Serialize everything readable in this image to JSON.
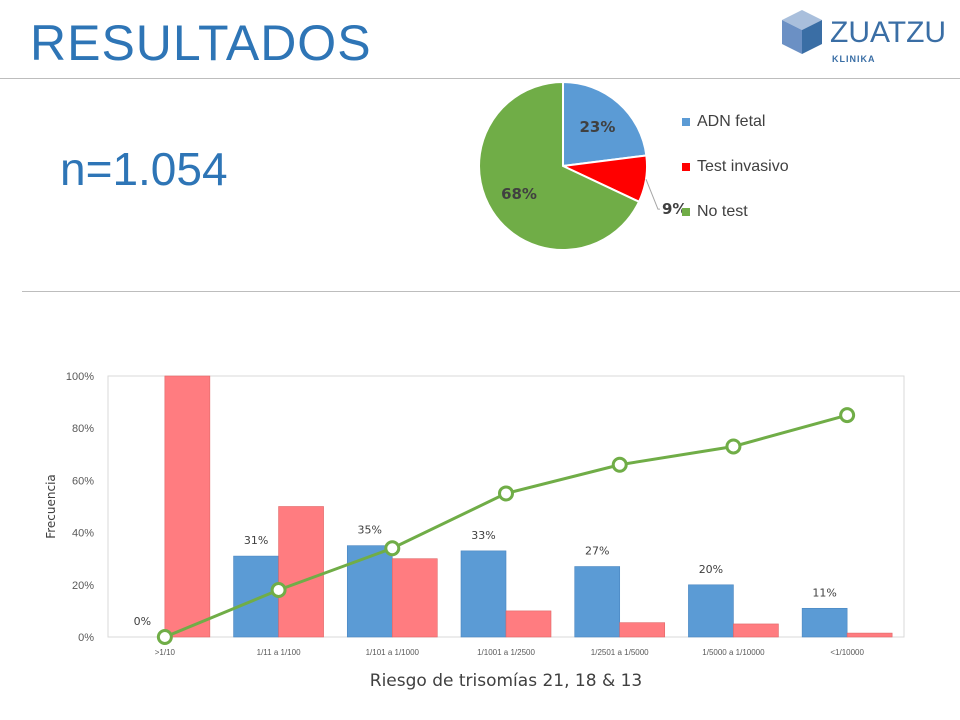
{
  "header": {
    "title": "RESULTADOS",
    "logo_name": "ZUATZU",
    "logo_sub": "KLINIKA"
  },
  "summary": {
    "n_label": "n=1.054"
  },
  "chart_data": [
    {
      "type": "pie",
      "labels": [
        "ADN fetal",
        "Test invasivo",
        "No test"
      ],
      "values": [
        23,
        9,
        68
      ],
      "value_labels": [
        "23%",
        "9%",
        "68%"
      ],
      "colors": [
        "#5b9bd5",
        "#ff0000",
        "#70ad47"
      ],
      "legend": "right",
      "title": ""
    },
    {
      "type": "bar",
      "categories": [
        ">1/10",
        "1/11 a 1/100",
        "1/101 a 1/1000",
        "1/1001 a 1/2500",
        "1/2501 a 1/5000",
        "1/5000 a 1/10000",
        "<1/10000"
      ],
      "series": [
        {
          "values": [
            0,
            31,
            35,
            33,
            27,
            20,
            11
          ],
          "value_labels": [
            "0%",
            "31%",
            "35%",
            "33%",
            "27%",
            "20%",
            "11%"
          ],
          "color": "#5b9bd5",
          "type": "bar"
        },
        {
          "values": [
            100,
            50,
            30,
            10,
            5.5,
            5,
            1.5
          ],
          "color": "#ff7c80",
          "type": "bar"
        },
        {
          "values": [
            0,
            18,
            34,
            55,
            66,
            73,
            85
          ],
          "color": "#70ad47",
          "type": "line",
          "markers": "circle"
        }
      ],
      "y_ticks": [
        "0%",
        "20%",
        "40%",
        "60%",
        "80%",
        "100%"
      ],
      "ylim": [
        0,
        100
      ],
      "ylabel": "Frecuencia",
      "xlabel": "Riesgo de trisomías 21, 18 & 13",
      "grid": false,
      "title": ""
    }
  ]
}
